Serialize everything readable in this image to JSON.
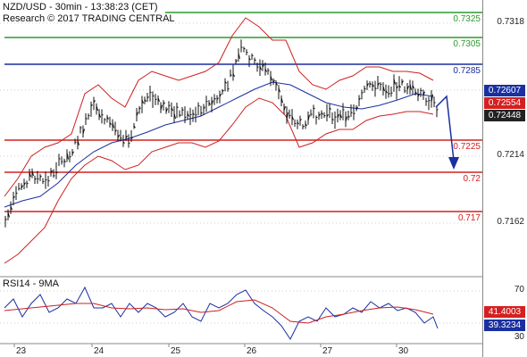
{
  "header": {
    "line1": "NZD/USD - 30min - 13:38:23 (CET)",
    "line2": "Research © 2017 TRADING CENTRAL"
  },
  "price_axis": {
    "ticks": [
      "0.7318",
      "0.7214",
      "0.7162"
    ]
  },
  "levels": [
    {
      "label": "0.7325",
      "value": 0.7325,
      "color": "#2e9a2e"
    },
    {
      "label": "0.7305",
      "value": 0.7305,
      "color": "#2e9a2e"
    },
    {
      "label": "0.7285",
      "value": 0.7285,
      "color": "#1a2fa0"
    },
    {
      "label": "0.7225",
      "value": 0.7225,
      "color": "#d42020"
    },
    {
      "label": "0.72",
      "value": 0.72,
      "color": "#d42020"
    },
    {
      "label": "0.717",
      "value": 0.717,
      "color": "#d42020"
    }
  ],
  "price_tags": [
    {
      "label": "0.72607",
      "color": "#1a2fa0"
    },
    {
      "label": "0.72554",
      "color": "#d42020"
    },
    {
      "label": "0.72448",
      "color": "#222222"
    }
  ],
  "rsi": {
    "title": "RSI14 - 9MA",
    "ticks": [
      "70",
      "30"
    ],
    "tags": [
      {
        "label": "41.4003",
        "color": "#d42020"
      },
      {
        "label": "39.3234",
        "color": "#1a2fa0"
      }
    ]
  },
  "dates": [
    "23",
    "24",
    "25",
    "26",
    "27",
    "30"
  ],
  "colors": {
    "candles": "#111111",
    "bollinger": "#cc2020",
    "ma": "#1a2fa0",
    "arrow": "#1a2fa0"
  }
}
